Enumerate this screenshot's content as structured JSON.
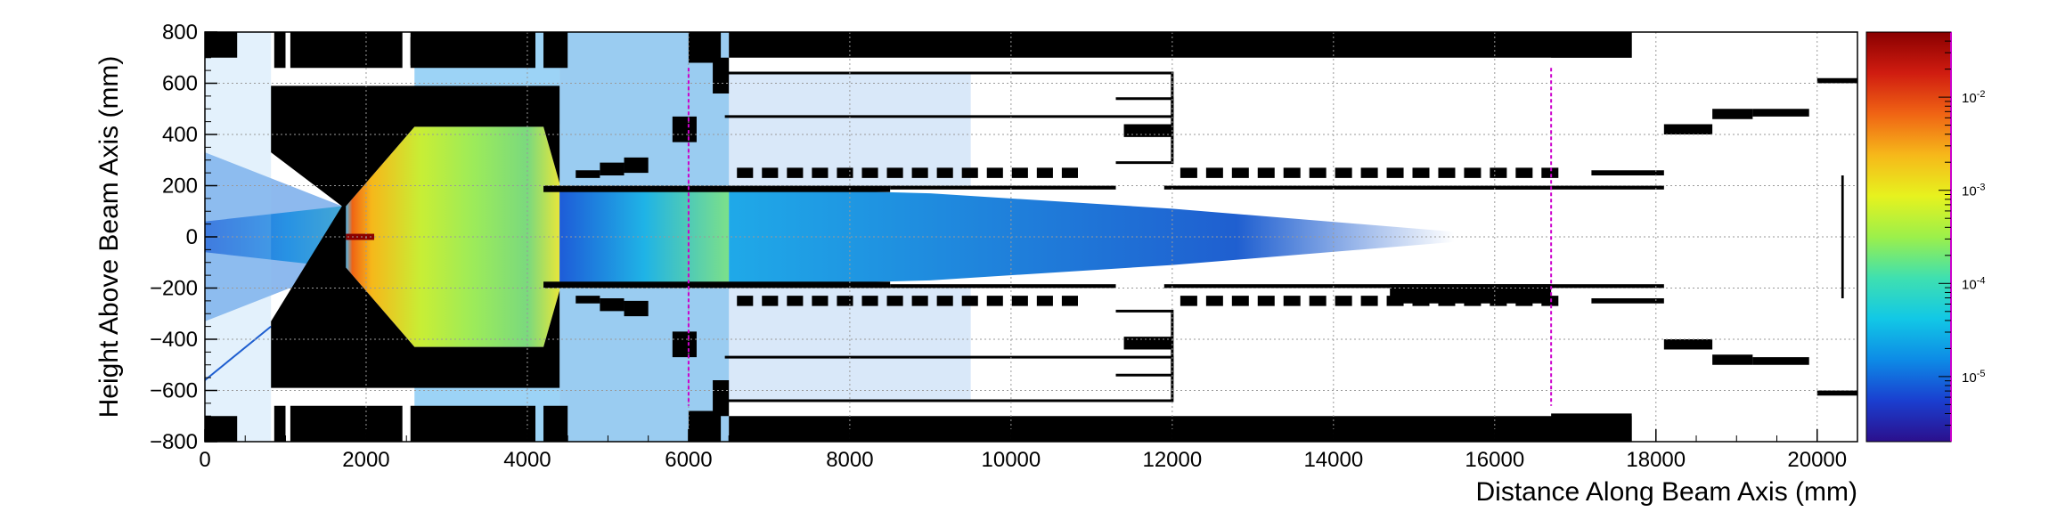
{
  "chart_data": {
    "type": "heatmap",
    "xlabel": "Distance Along Beam Axis (mm)",
    "ylabel": "Height Above Beam Axis (mm)",
    "xlim": [
      0,
      20500
    ],
    "ylim": [
      -800,
      800
    ],
    "x_ticks": [
      0,
      2000,
      4000,
      6000,
      8000,
      10000,
      12000,
      14000,
      16000,
      18000,
      20000
    ],
    "x_tick_labels": [
      "0",
      "2000",
      "4000",
      "6000",
      "8000",
      "10000",
      "12000",
      "14000",
      "16000",
      "18000",
      "20000"
    ],
    "y_ticks": [
      -800,
      -600,
      -400,
      -200,
      0,
      200,
      400,
      600,
      800
    ],
    "y_tick_labels": [
      "−800",
      "−600",
      "−400",
      "−200",
      "0",
      "200",
      "400",
      "600",
      "800"
    ],
    "grid": true,
    "log_color_scale": true,
    "colorbar": {
      "range": [
        2e-06,
        0.05
      ],
      "ticks": [
        1e-05,
        0.0001,
        0.001,
        0.01
      ],
      "tick_labels": [
        {
          "base": "10",
          "exp": "-5"
        },
        {
          "base": "10",
          "exp": "-4"
        },
        {
          "base": "10",
          "exp": "-3"
        },
        {
          "base": "10",
          "exp": "-2"
        }
      ]
    },
    "colormap": [
      "#2b0f8c",
      "#1a3fd0",
      "#0d8be6",
      "#12c8e6",
      "#3fe0b0",
      "#9cf04a",
      "#e7f21e",
      "#f6b81a",
      "#f06414",
      "#d01c10",
      "#8a0000"
    ],
    "markers": {
      "dashed_vertical_x": [
        6000,
        16700
      ],
      "color": "#cc00cc"
    }
  }
}
